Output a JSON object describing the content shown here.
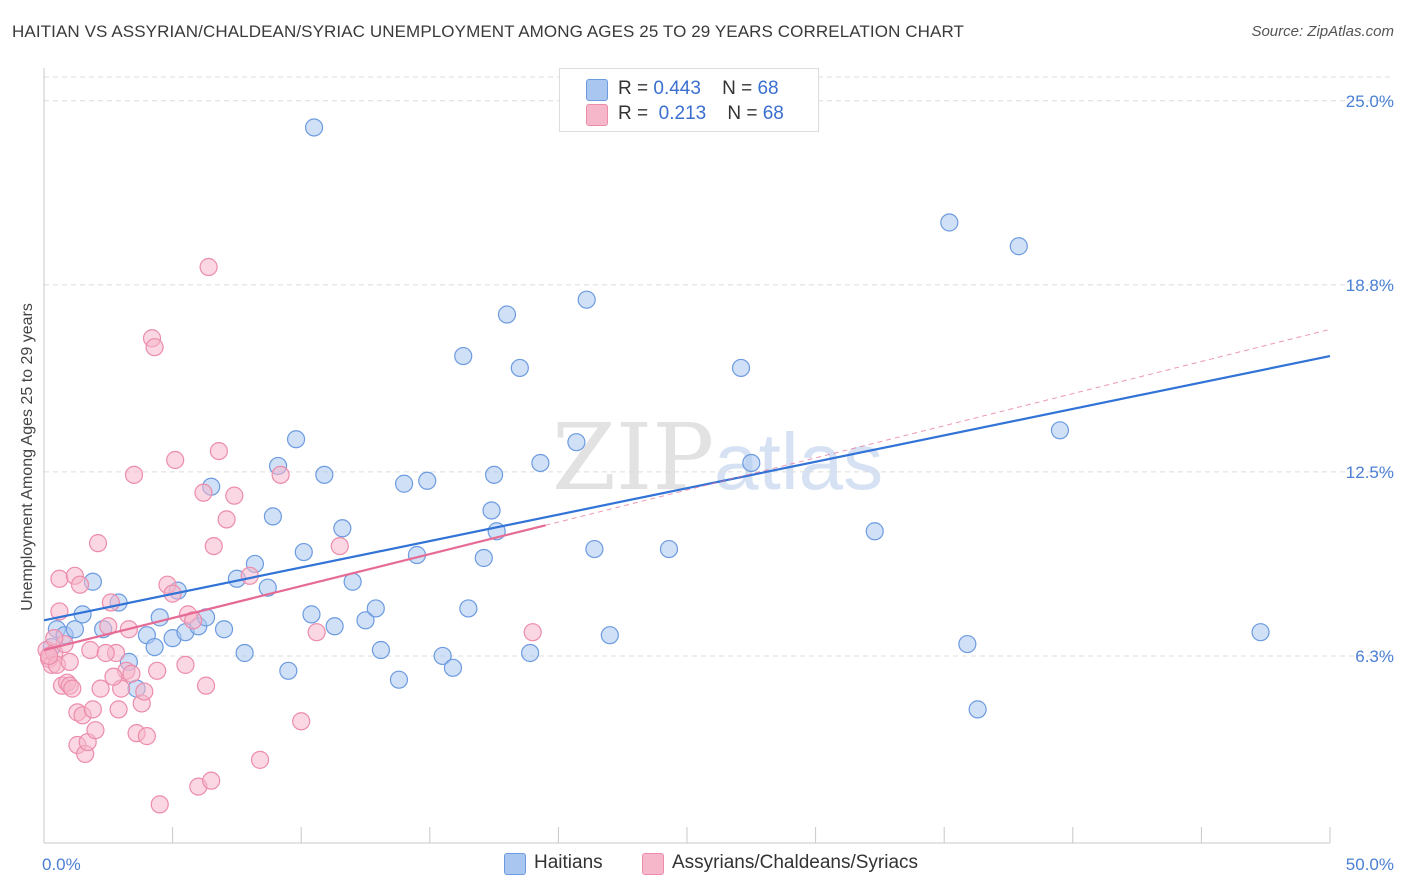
{
  "title": "HAITIAN VS ASSYRIAN/CHALDEAN/SYRIAC UNEMPLOYMENT AMONG AGES 25 TO 29 YEARS CORRELATION CHART",
  "source": "Source: ZipAtlas.com",
  "watermark": {
    "zip": "ZIP",
    "atlas": "atlas"
  },
  "legend": {
    "rows": [
      {
        "r_label": "R =",
        "r_value": "0.443",
        "n_label": "N =",
        "n_value": "68",
        "color": "#a9c6f0"
      },
      {
        "r_label": "R =",
        "r_value": "0.213",
        "n_label": "N =",
        "n_value": "68",
        "color": "#f6b7cb"
      }
    ]
  },
  "bottom_legend": [
    {
      "label": "Haitians",
      "color": "#a9c6f0"
    },
    {
      "label": "Assyrians/Chaldeans/Syriacs",
      "color": "#f6b7cb"
    }
  ],
  "colors": {
    "haitian_fill": "#a9c6f0",
    "haitian_stroke": "#6c9be0",
    "haitian_line": "#3173d6",
    "assyrian_fill": "#f6b7cb",
    "assyrian_stroke": "#ec8cab",
    "assyrian_line": "#e56b95",
    "grid": "#dcdcdc",
    "tick_text": "#4a7fd4"
  },
  "chart_data": {
    "type": "scatter",
    "title": "HAITIAN VS ASSYRIAN/CHALDEAN/SYRIAC UNEMPLOYMENT AMONG AGES 25 TO 29 YEARS CORRELATION CHART",
    "xlabel": "",
    "ylabel": "Unemployment Among Ages 25 to 29 years",
    "xlim": [
      0,
      50
    ],
    "ylim": [
      0,
      25.8
    ],
    "x_tick_labels": [
      "0.0%",
      "50.0%"
    ],
    "y_ticks": [
      6.3,
      12.5,
      18.8,
      25.0
    ],
    "y_tick_labels": [
      "6.3%",
      "12.5%",
      "18.8%",
      "25.0%"
    ],
    "grid": true,
    "legend_position": "top-center",
    "series": [
      {
        "name": "Haitians",
        "trend": {
          "x": [
            0,
            50
          ],
          "y": [
            7.5,
            16.4
          ]
        },
        "points": [
          [
            0.3,
            6.6
          ],
          [
            0.5,
            7.2
          ],
          [
            0.8,
            7.0
          ],
          [
            1.2,
            7.2
          ],
          [
            1.5,
            7.7
          ],
          [
            1.9,
            8.8
          ],
          [
            2.3,
            7.2
          ],
          [
            2.9,
            8.1
          ],
          [
            3.3,
            6.1
          ],
          [
            3.6,
            5.2
          ],
          [
            4.0,
            7.0
          ],
          [
            4.3,
            6.6
          ],
          [
            4.5,
            7.6
          ],
          [
            5.0,
            6.9
          ],
          [
            5.2,
            8.5
          ],
          [
            5.5,
            7.1
          ],
          [
            6.0,
            7.3
          ],
          [
            6.3,
            7.6
          ],
          [
            6.5,
            12.0
          ],
          [
            7.0,
            7.2
          ],
          [
            7.5,
            8.9
          ],
          [
            7.8,
            6.4
          ],
          [
            8.2,
            9.4
          ],
          [
            8.7,
            8.6
          ],
          [
            8.9,
            11.0
          ],
          [
            9.1,
            12.7
          ],
          [
            9.5,
            5.8
          ],
          [
            9.8,
            13.6
          ],
          [
            10.1,
            9.8
          ],
          [
            10.4,
            7.7
          ],
          [
            10.5,
            24.1
          ],
          [
            10.9,
            12.4
          ],
          [
            11.3,
            7.3
          ],
          [
            11.6,
            10.6
          ],
          [
            12.0,
            8.8
          ],
          [
            12.5,
            7.5
          ],
          [
            12.9,
            7.9
          ],
          [
            13.1,
            6.5
          ],
          [
            13.8,
            5.5
          ],
          [
            14.0,
            12.1
          ],
          [
            14.5,
            9.7
          ],
          [
            14.9,
            12.2
          ],
          [
            15.5,
            6.3
          ],
          [
            15.9,
            5.9
          ],
          [
            16.3,
            16.4
          ],
          [
            16.5,
            7.9
          ],
          [
            17.1,
            9.6
          ],
          [
            17.4,
            11.2
          ],
          [
            17.5,
            12.4
          ],
          [
            17.6,
            10.5
          ],
          [
            18.0,
            17.8
          ],
          [
            18.5,
            16.0
          ],
          [
            18.9,
            6.4
          ],
          [
            19.3,
            12.8
          ],
          [
            20.7,
            13.5
          ],
          [
            21.1,
            18.3
          ],
          [
            21.4,
            9.9
          ],
          [
            22.0,
            7.0
          ],
          [
            24.3,
            9.9
          ],
          [
            27.1,
            16.0
          ],
          [
            27.5,
            12.8
          ],
          [
            32.3,
            10.5
          ],
          [
            35.2,
            20.9
          ],
          [
            35.9,
            6.7
          ],
          [
            36.3,
            4.5
          ],
          [
            37.9,
            20.1
          ],
          [
            39.5,
            13.9
          ],
          [
            47.3,
            7.1
          ]
        ]
      },
      {
        "name": "Assyrians/Chaldeans/Syriacs",
        "trend": {
          "x": [
            0,
            19.5
          ],
          "y": [
            6.5,
            10.7
          ]
        },
        "trend_extension": {
          "x": [
            19.5,
            50
          ],
          "y": [
            10.7,
            17.3
          ]
        },
        "points": [
          [
            0.1,
            6.5
          ],
          [
            0.2,
            6.2
          ],
          [
            0.3,
            6.0
          ],
          [
            0.4,
            6.4
          ],
          [
            0.5,
            6.0
          ],
          [
            0.6,
            8.9
          ],
          [
            0.6,
            7.8
          ],
          [
            0.7,
            5.3
          ],
          [
            0.8,
            6.7
          ],
          [
            0.9,
            5.4
          ],
          [
            1.0,
            5.3
          ],
          [
            1.1,
            5.2
          ],
          [
            1.2,
            9.0
          ],
          [
            1.3,
            4.4
          ],
          [
            1.3,
            3.3
          ],
          [
            1.4,
            8.7
          ],
          [
            1.5,
            4.3
          ],
          [
            1.6,
            3.0
          ],
          [
            1.7,
            3.4
          ],
          [
            1.8,
            6.5
          ],
          [
            1.9,
            4.5
          ],
          [
            2.0,
            3.8
          ],
          [
            2.1,
            10.1
          ],
          [
            2.2,
            5.2
          ],
          [
            2.5,
            7.3
          ],
          [
            2.6,
            8.1
          ],
          [
            2.8,
            6.4
          ],
          [
            2.9,
            4.5
          ],
          [
            3.0,
            5.2
          ],
          [
            3.2,
            5.8
          ],
          [
            3.3,
            7.2
          ],
          [
            3.4,
            5.7
          ],
          [
            3.5,
            12.4
          ],
          [
            3.6,
            3.7
          ],
          [
            3.8,
            4.7
          ],
          [
            3.9,
            5.1
          ],
          [
            4.0,
            3.6
          ],
          [
            4.2,
            17.0
          ],
          [
            4.3,
            16.7
          ],
          [
            4.4,
            5.8
          ],
          [
            4.5,
            1.3
          ],
          [
            4.8,
            8.7
          ],
          [
            5.0,
            8.4
          ],
          [
            5.1,
            12.9
          ],
          [
            5.5,
            6.0
          ],
          [
            5.6,
            7.7
          ],
          [
            5.8,
            7.5
          ],
          [
            6.0,
            1.9
          ],
          [
            6.2,
            11.8
          ],
          [
            6.3,
            5.3
          ],
          [
            6.4,
            19.4
          ],
          [
            6.5,
            2.1
          ],
          [
            6.6,
            10.0
          ],
          [
            6.8,
            13.2
          ],
          [
            7.1,
            10.9
          ],
          [
            7.4,
            11.7
          ],
          [
            8.0,
            9.0
          ],
          [
            8.4,
            2.8
          ],
          [
            9.2,
            12.4
          ],
          [
            10.0,
            4.1
          ],
          [
            10.6,
            7.1
          ],
          [
            11.5,
            10.0
          ],
          [
            19.0,
            7.1
          ],
          [
            0.2,
            6.3
          ],
          [
            0.4,
            6.9
          ],
          [
            1.0,
            6.1
          ],
          [
            2.4,
            6.4
          ],
          [
            2.7,
            5.6
          ]
        ]
      }
    ]
  }
}
